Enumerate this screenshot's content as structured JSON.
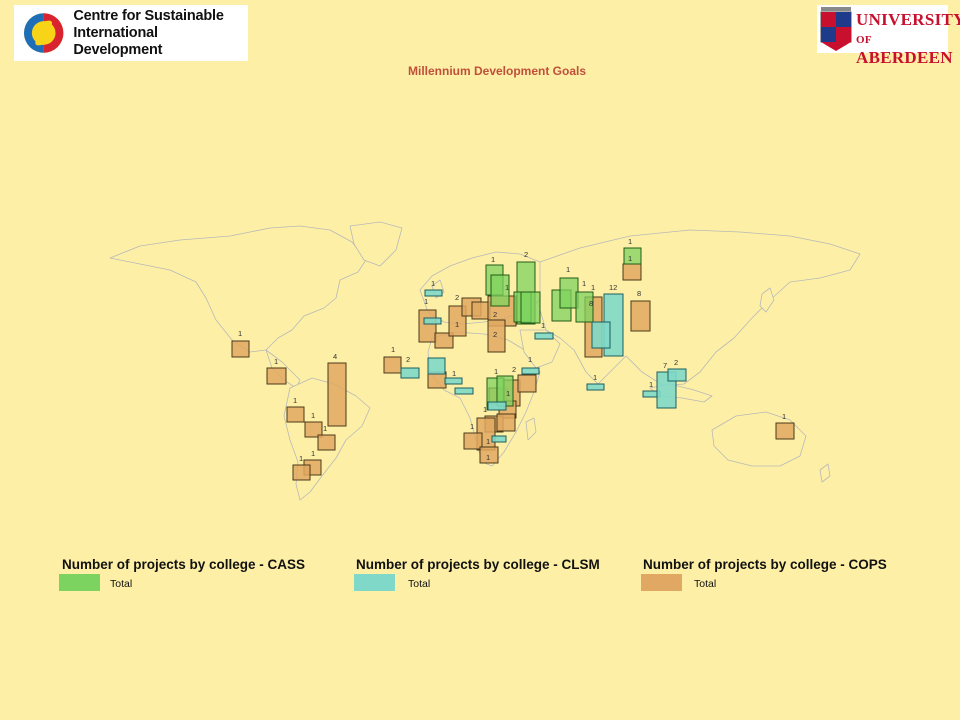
{
  "title": "Millennium Development Goals",
  "logos": {
    "csid": {
      "line1": "Centre for Sustainable",
      "line2": "International Development"
    },
    "aberdeen": {
      "line1": "UNIVERSITY",
      "line2_prefix": "OF",
      "line2": "ABERDEEN"
    }
  },
  "colors": {
    "background": "#fdf0a6",
    "land": "#fdf0a6",
    "country_border": "#b8b8b8",
    "cass": "#7dd35f",
    "clsm": "#7fd8c8",
    "cops": "#e0a862",
    "title": "#c0503a"
  },
  "legend": [
    {
      "heading": "Number of projects by college - CASS",
      "label": "Total",
      "color": "#7dd35f"
    },
    {
      "heading": "Number of projects by college - CLSM",
      "label": "Total",
      "color": "#7fd8c8"
    },
    {
      "heading": "Number of projects by college - COPS",
      "label": "Total",
      "color": "#e0a862"
    }
  ],
  "project_labels": {
    "cass": [
      "2",
      "1",
      "1",
      "1",
      "1",
      "1",
      "1",
      "1",
      "1",
      "1",
      "1",
      "1",
      "1",
      "2"
    ],
    "clsm": [
      "1",
      "2",
      "1",
      "12",
      "1",
      "1",
      "7",
      "2",
      "1",
      "2",
      "1"
    ],
    "cops": [
      "1",
      "1",
      "4",
      "1",
      "1",
      "1",
      "1",
      "1",
      "1",
      "1",
      "2",
      "1",
      "1",
      "2",
      "1",
      "2",
      "8",
      "1",
      "1",
      "1",
      "1",
      "1",
      "1",
      "1"
    ]
  }
}
